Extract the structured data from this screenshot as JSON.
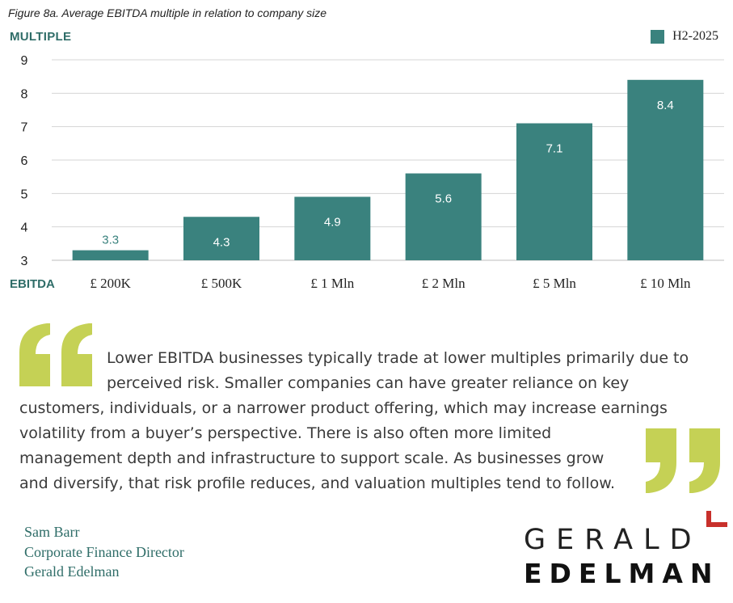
{
  "caption": "Figure 8a. Average EBITDA multiple in relation to company size",
  "y_title": "MULTIPLE",
  "x_title": "EBITDA",
  "colors": {
    "bar": "#3a827e",
    "grid": "#d4d4d4",
    "quote_mark": "#c5d155",
    "label_dark": "#3a827e",
    "label_light": "#ffffff",
    "accent": "#c8302b"
  },
  "chart_data": {
    "type": "bar",
    "categories": [
      "£ 200K",
      "£ 500K",
      "£ 1 Mln",
      "£ 2 Mln",
      "£ 5 Mln",
      "£ 10 Mln"
    ],
    "series": [
      {
        "name": "H2-2025",
        "values": [
          3.3,
          4.3,
          4.9,
          5.6,
          7.1,
          8.4
        ]
      }
    ],
    "data_labels": [
      "3.3",
      "4.3",
      "4.9",
      "5.6",
      "7.1",
      "8.4"
    ],
    "ylim": [
      3,
      9
    ],
    "yticks": [
      "3",
      "4",
      "5",
      "6",
      "7",
      "8",
      "9"
    ],
    "grid": true,
    "legend": "top-right"
  },
  "quote": {
    "lines": [
      "Lower EBITDA businesses typically trade at lower multiples primarily due to",
      "perceived risk. Smaller companies can have greater reliance on key",
      "customers, individuals, or a narrower product offering, which may increase earnings",
      "volatility from a buyer’s perspective. There is also often more limited",
      "management depth and infrastructure to support scale. As businesses grow",
      "and diversify, that risk profile reduces, and valuation multiples tend to follow."
    ]
  },
  "author": {
    "name": "Sam Barr",
    "title": "Corporate Finance Director",
    "company": "Gerald Edelman"
  },
  "logo": {
    "line1": "GERALD",
    "line2": "EDELMAN"
  }
}
